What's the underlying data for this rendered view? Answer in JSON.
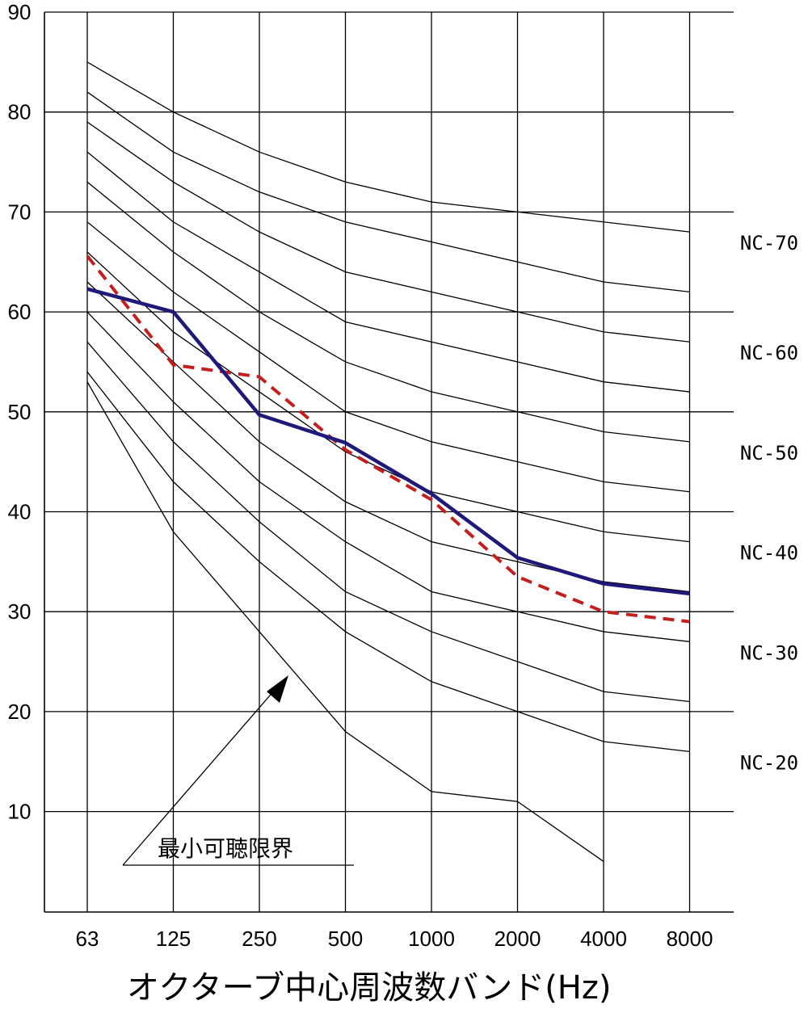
{
  "chart_data": {
    "type": "line",
    "xlabel": "オクターブ中心周波数バンド(Hz)",
    "ylabel": "",
    "ylim": [
      0,
      90
    ],
    "yticks": [
      "10",
      "20",
      "30",
      "40",
      "50",
      "60",
      "70",
      "80",
      "90"
    ],
    "categories": [
      "63",
      "125",
      "250",
      "500",
      "1000",
      "2000",
      "4000",
      "8000"
    ],
    "grid": true,
    "nc_curves": [
      {
        "label": "NC-70",
        "values": [
          85,
          80,
          76,
          73,
          71,
          70,
          69,
          68
        ]
      },
      {
        "label": "",
        "values": [
          82,
          76,
          72,
          69,
          67,
          65,
          63,
          62
        ]
      },
      {
        "label": "NC-60",
        "values": [
          79,
          73,
          68,
          64,
          62,
          60,
          58,
          57
        ]
      },
      {
        "label": "",
        "values": [
          76,
          69,
          64,
          59,
          57,
          55,
          53,
          52
        ]
      },
      {
        "label": "NC-50",
        "values": [
          73,
          66,
          60,
          55,
          52,
          50,
          48,
          47
        ]
      },
      {
        "label": "",
        "values": [
          69,
          62,
          56,
          50,
          47,
          45,
          43,
          42
        ]
      },
      {
        "label": "NC-40",
        "values": [
          66,
          58,
          52,
          46,
          42,
          40,
          38,
          37
        ]
      },
      {
        "label": "",
        "values": [
          63,
          55,
          47,
          41,
          37,
          35,
          33,
          32
        ]
      },
      {
        "label": "NC-30",
        "values": [
          60,
          51,
          43,
          37,
          32,
          30,
          28,
          27
        ]
      },
      {
        "label": "",
        "values": [
          57,
          47,
          39,
          32,
          28,
          25,
          22,
          21
        ]
      },
      {
        "label": "NC-20",
        "values": [
          54,
          43,
          35,
          28,
          23,
          20,
          17,
          16
        ]
      }
    ],
    "threshold": {
      "values": [
        53,
        38,
        28,
        18,
        12,
        11,
        5,
        null
      ]
    },
    "series": [
      {
        "color": "#1f1a7a",
        "style": "solid",
        "values": [
          62.3,
          60.0,
          49.7,
          46.9,
          41.8,
          35.4,
          32.8,
          31.8
        ]
      },
      {
        "color": "#c41e1e",
        "style": "dashed",
        "values": [
          65.6,
          54.7,
          53.5,
          46.2,
          41.2,
          33.5,
          30.0,
          29.0
        ]
      }
    ],
    "annotation": {
      "text": "最小可聴限界"
    }
  }
}
